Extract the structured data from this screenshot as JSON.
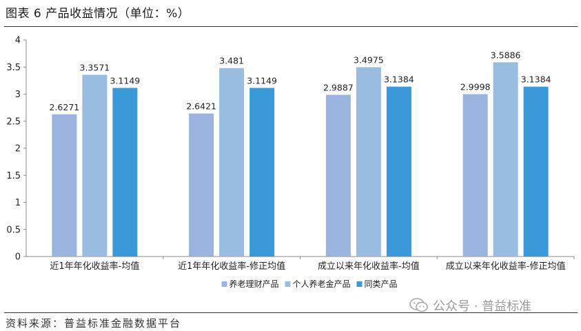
{
  "title": "图表 6 产品收益情况（单位：%）",
  "source": "资料来源：普益标准金融数据平台",
  "watermark": "公众号 · 普益标准",
  "chart_data": {
    "type": "bar",
    "categories": [
      "近1年年化收益率-均值",
      "近1年年化收益率-修正均值",
      "成立以来年化收益率-均值",
      "成立以来年化收益率-修正均值"
    ],
    "series": [
      {
        "name": "养老理财产品",
        "color": "#9bb3df",
        "values": [
          2.6271,
          2.6421,
          2.9887,
          2.9998
        ],
        "labels": [
          "2.6271",
          "2.6421",
          "2.9887",
          "2.9998"
        ]
      },
      {
        "name": "个人养老金产品",
        "color": "#98bde0",
        "values": [
          3.3571,
          3.481,
          3.4975,
          3.5886
        ],
        "labels": [
          "3.3571",
          "3.481",
          "3.4975",
          "3.5886"
        ]
      },
      {
        "name": "同类产品",
        "color": "#3a99d9",
        "values": [
          3.1149,
          3.1149,
          3.1384,
          3.1384
        ],
        "labels": [
          "3.1149",
          "3.1149",
          "3.1384",
          "3.1384"
        ]
      }
    ],
    "ylim": [
      0,
      4
    ],
    "yticks": [
      "0",
      "0.5",
      "1",
      "1.5",
      "2",
      "2.5",
      "3",
      "3.5",
      "4"
    ],
    "legend_position": "bottom",
    "grid": false
  }
}
